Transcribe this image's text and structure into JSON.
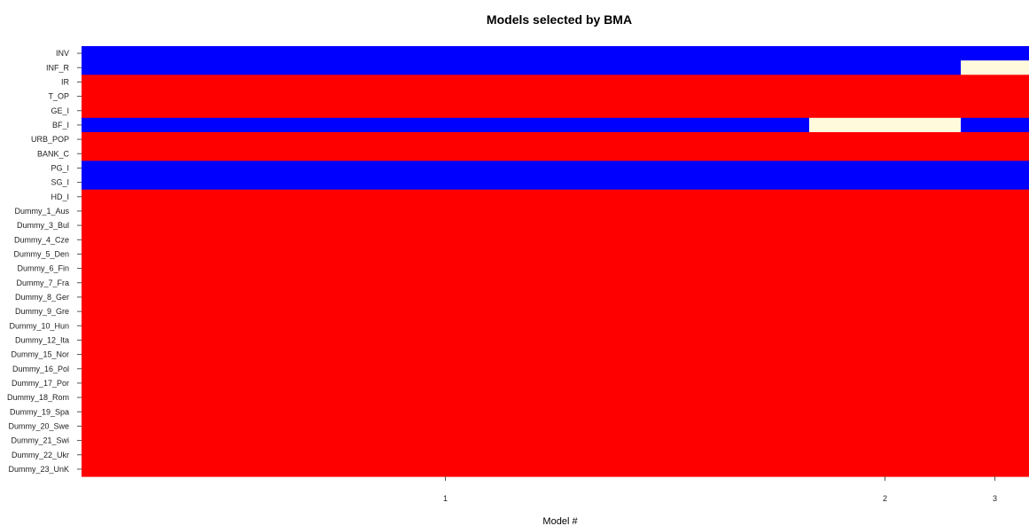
{
  "chart_data": {
    "type": "heatmap",
    "title": "Models selected by BMA",
    "xlabel": "Model #",
    "ylabel": "",
    "colors": {
      "positive": "#0000ff",
      "negative": "#ff0000",
      "excluded": "#fffadc"
    },
    "models": [
      {
        "label": "1",
        "pmp": 0.768
      },
      {
        "label": "2",
        "pmp": 0.16
      },
      {
        "label": "3",
        "pmp": 0.072
      }
    ],
    "variables": [
      "INV",
      "INF_R",
      "IR",
      "T_OP",
      "GE_I",
      "BF_I",
      "URB_POP",
      "BANK_C",
      "PG_I",
      "SG_I",
      "HD_I",
      "Dummy_1_Aus",
      "Dummy_3_Bul",
      "Dummy_4_Cze",
      "Dummy_5_Den",
      "Dummy_6_Fin",
      "Dummy_7_Fra",
      "Dummy_8_Ger",
      "Dummy_9_Gre",
      "Dummy_10_Hun",
      "Dummy_12_Ita",
      "Dummy_15_Nor",
      "Dummy_16_Pol",
      "Dummy_17_Por",
      "Dummy_18_Rom",
      "Dummy_19_Spa",
      "Dummy_20_Swe",
      "Dummy_21_Swi",
      "Dummy_22_Ukr",
      "Dummy_23_UnK"
    ],
    "inclusion": [
      [
        "positive",
        "positive",
        "positive"
      ],
      [
        "positive",
        "positive",
        "excluded"
      ],
      [
        "negative",
        "negative",
        "negative"
      ],
      [
        "negative",
        "negative",
        "negative"
      ],
      [
        "negative",
        "negative",
        "negative"
      ],
      [
        "positive",
        "excluded",
        "positive"
      ],
      [
        "negative",
        "negative",
        "negative"
      ],
      [
        "negative",
        "negative",
        "negative"
      ],
      [
        "positive",
        "positive",
        "positive"
      ],
      [
        "positive",
        "positive",
        "positive"
      ],
      [
        "negative",
        "negative",
        "negative"
      ],
      [
        "negative",
        "negative",
        "negative"
      ],
      [
        "negative",
        "negative",
        "negative"
      ],
      [
        "negative",
        "negative",
        "negative"
      ],
      [
        "negative",
        "negative",
        "negative"
      ],
      [
        "negative",
        "negative",
        "negative"
      ],
      [
        "negative",
        "negative",
        "negative"
      ],
      [
        "negative",
        "negative",
        "negative"
      ],
      [
        "negative",
        "negative",
        "negative"
      ],
      [
        "negative",
        "negative",
        "negative"
      ],
      [
        "negative",
        "negative",
        "negative"
      ],
      [
        "negative",
        "negative",
        "negative"
      ],
      [
        "negative",
        "negative",
        "negative"
      ],
      [
        "negative",
        "negative",
        "negative"
      ],
      [
        "negative",
        "negative",
        "negative"
      ],
      [
        "negative",
        "negative",
        "negative"
      ],
      [
        "negative",
        "negative",
        "negative"
      ],
      [
        "negative",
        "negative",
        "negative"
      ],
      [
        "negative",
        "negative",
        "negative"
      ],
      [
        "negative",
        "negative",
        "negative"
      ]
    ],
    "legend": "none",
    "grid": false
  }
}
